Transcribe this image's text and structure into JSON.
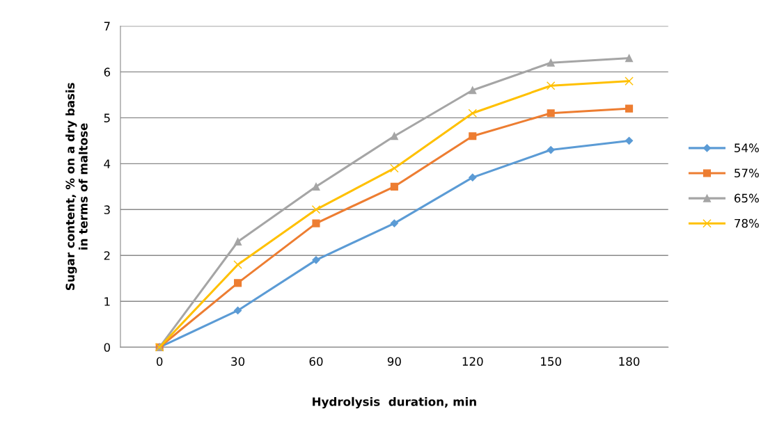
{
  "chart_data": {
    "type": "line",
    "xlabel": "Hydrolysis  duration, min",
    "ylabel": "Sugar content, % on a dry basis\nin terms of maltose",
    "categories": [
      "0",
      "30",
      "60",
      "90",
      "120",
      "150",
      "180"
    ],
    "series": [
      {
        "name": "54%",
        "color": "#5b9bd5",
        "marker": "diamond",
        "values": [
          0,
          0.8,
          1.9,
          2.7,
          3.7,
          4.3,
          4.5
        ]
      },
      {
        "name": "57%",
        "color": "#ed7d31",
        "marker": "square",
        "values": [
          0,
          1.4,
          2.7,
          3.5,
          4.6,
          5.1,
          5.2
        ]
      },
      {
        "name": "65%",
        "color": "#a5a5a5",
        "marker": "triangle",
        "values": [
          0,
          2.3,
          3.5,
          4.6,
          5.6,
          6.2,
          6.3
        ]
      },
      {
        "name": "78%",
        "color": "#ffc000",
        "marker": "cross",
        "values": [
          0,
          1.8,
          3.0,
          3.9,
          5.1,
          5.7,
          5.8
        ]
      }
    ],
    "ylim": [
      0,
      7
    ],
    "yticks": [
      0,
      1,
      2,
      3,
      4,
      5,
      6,
      7
    ],
    "grid": "y",
    "legend": "right",
    "line_style": "solid"
  }
}
